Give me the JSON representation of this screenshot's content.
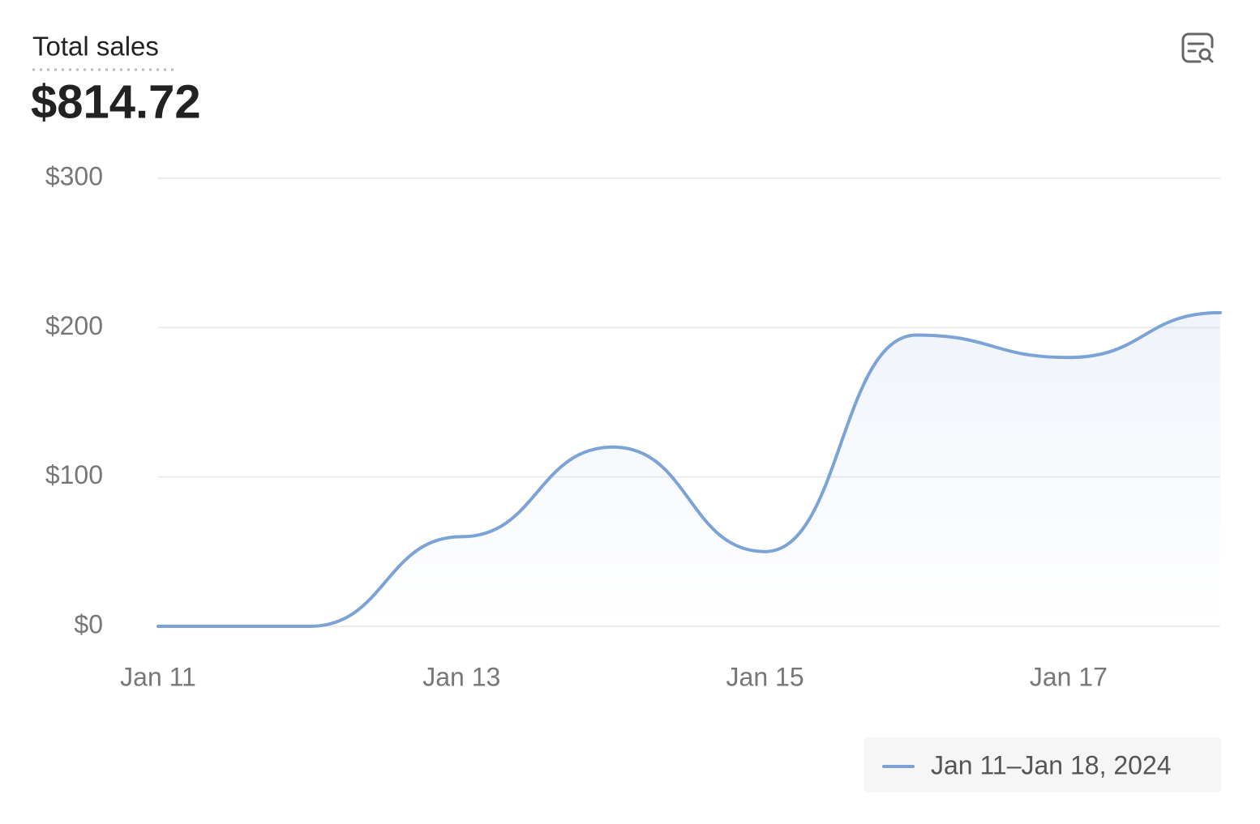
{
  "chart_data": {
    "type": "line",
    "title": "Total sales",
    "summary_value": "$814.72",
    "categories": [
      "Jan 11",
      null,
      "Jan 13",
      null,
      "Jan 15",
      null,
      "Jan 17",
      null
    ],
    "series": [
      {
        "name": "Jan 11–Jan 18, 2024",
        "color": "#7ba3d6",
        "values": [
          0,
          0,
          60,
          120,
          50,
          195,
          180,
          210
        ]
      }
    ],
    "ylim": [
      0,
      300
    ],
    "yticks": [
      {
        "value": 0,
        "label": "$0"
      },
      {
        "value": 100,
        "label": "$100"
      },
      {
        "value": 200,
        "label": "$200"
      },
      {
        "value": 300,
        "label": "$300"
      }
    ],
    "grid": true,
    "legend": "bottom-right"
  }
}
